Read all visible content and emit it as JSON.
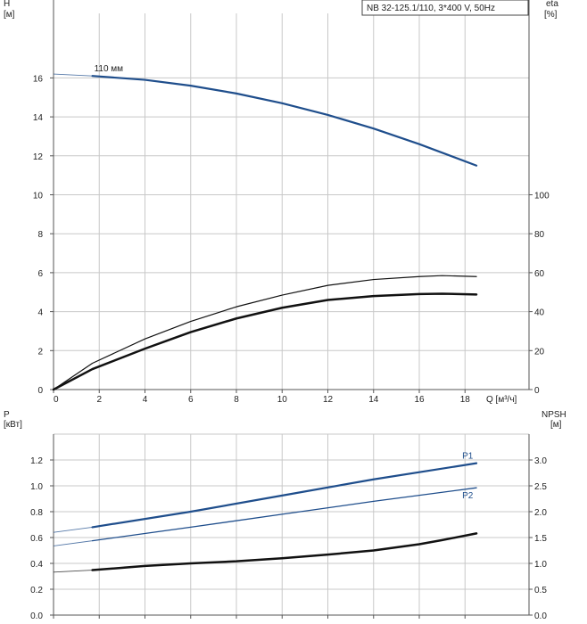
{
  "chart_data": [
    {
      "type": "line",
      "title": "NB 32-125.1/110, 3*400 V, 50Hz",
      "x_axis": {
        "label": "Q [м³/ч]",
        "range": [
          0,
          20.8
        ],
        "ticks": [
          0,
          2,
          4,
          6,
          8,
          10,
          12,
          14,
          16,
          18
        ]
      },
      "y_left": {
        "label_top": "H",
        "label_unit": "[м]",
        "range": [
          0,
          20
        ],
        "ticks": [
          0,
          2,
          4,
          6,
          8,
          10,
          12,
          14,
          16
        ]
      },
      "y_right": {
        "label_top": "eta",
        "label_unit": "[%]",
        "range": [
          0,
          200
        ],
        "ticks": [
          0,
          20,
          40,
          60,
          80,
          100
        ]
      },
      "grid": true,
      "series": [
        {
          "name": "110 мм",
          "axis": "left",
          "color": "#1f4e8c",
          "extension_start": [
            [
              0,
              16.2
            ],
            [
              1.7,
              16.1
            ]
          ],
          "points": [
            [
              1.7,
              16.1
            ],
            [
              4,
              15.9
            ],
            [
              6,
              15.6
            ],
            [
              8,
              15.2
            ],
            [
              10,
              14.7
            ],
            [
              12,
              14.1
            ],
            [
              14,
              13.4
            ],
            [
              16,
              12.6
            ],
            [
              18.5,
              11.5
            ]
          ]
        },
        {
          "axis": "right",
          "color": "#111111",
          "width": 1.2,
          "points": [
            [
              0,
              0
            ],
            [
              1.7,
              13.5
            ],
            [
              4,
              26
            ],
            [
              6,
              35
            ],
            [
              8,
              42.5
            ],
            [
              10,
              48.5
            ],
            [
              12,
              53.5
            ],
            [
              14,
              56.5
            ],
            [
              16,
              58
            ],
            [
              17,
              58.5
            ],
            [
              18.5,
              58
            ]
          ]
        },
        {
          "axis": "right",
          "color": "#111111",
          "width": 2.5,
          "points": [
            [
              0,
              0
            ],
            [
              1.7,
              10.5
            ],
            [
              4,
              21
            ],
            [
              6,
              29.5
            ],
            [
              8,
              36.5
            ],
            [
              10,
              42
            ],
            [
              12,
              46
            ],
            [
              14,
              48
            ],
            [
              16,
              49
            ],
            [
              17,
              49.2
            ],
            [
              18.5,
              48.8
            ]
          ]
        }
      ]
    },
    {
      "type": "line",
      "x_axis": {
        "range": [
          0,
          20.8
        ]
      },
      "y_left": {
        "label_top": "P",
        "label_unit": "[кВт]",
        "range": [
          0,
          1.4
        ],
        "ticks": [
          "0.0",
          "0.2",
          "0.4",
          "0.6",
          "0.8",
          "1.0",
          "1.2"
        ]
      },
      "y_right": {
        "label_top": "NPSH",
        "label_unit": "[м]",
        "range": [
          0,
          3.5
        ],
        "ticks": [
          "0.0",
          "0.5",
          "1.0",
          "1.5",
          "2.0",
          "2.5",
          "3.0"
        ]
      },
      "grid": true,
      "series": [
        {
          "name": "P1",
          "axis": "left",
          "color": "#1f4e8c",
          "width": 2.2,
          "extension_start": [
            [
              0,
              0.64
            ],
            [
              1.7,
              0.68
            ]
          ],
          "points": [
            [
              1.7,
              0.68
            ],
            [
              6,
              0.8
            ],
            [
              10,
              0.925
            ],
            [
              14,
              1.05
            ],
            [
              18.5,
              1.175
            ]
          ]
        },
        {
          "name": "P2",
          "axis": "left",
          "color": "#1f4e8c",
          "width": 1.3,
          "extension_start": [
            [
              0,
              0.535
            ],
            [
              1.7,
              0.575
            ]
          ],
          "points": [
            [
              1.7,
              0.575
            ],
            [
              6,
              0.68
            ],
            [
              10,
              0.78
            ],
            [
              14,
              0.88
            ],
            [
              18.5,
              0.985
            ]
          ]
        },
        {
          "axis": "right",
          "color": "#111111",
          "width": 2.5,
          "extension_start": [
            [
              0,
              0.83
            ],
            [
              1.7,
              0.87
            ]
          ],
          "points": [
            [
              1.7,
              0.87
            ],
            [
              4,
              0.95
            ],
            [
              6,
              1.0
            ],
            [
              8,
              1.04
            ],
            [
              10,
              1.1
            ],
            [
              12,
              1.17
            ],
            [
              14,
              1.25
            ],
            [
              16,
              1.37
            ],
            [
              17,
              1.45
            ],
            [
              18.5,
              1.58
            ]
          ]
        }
      ]
    }
  ]
}
